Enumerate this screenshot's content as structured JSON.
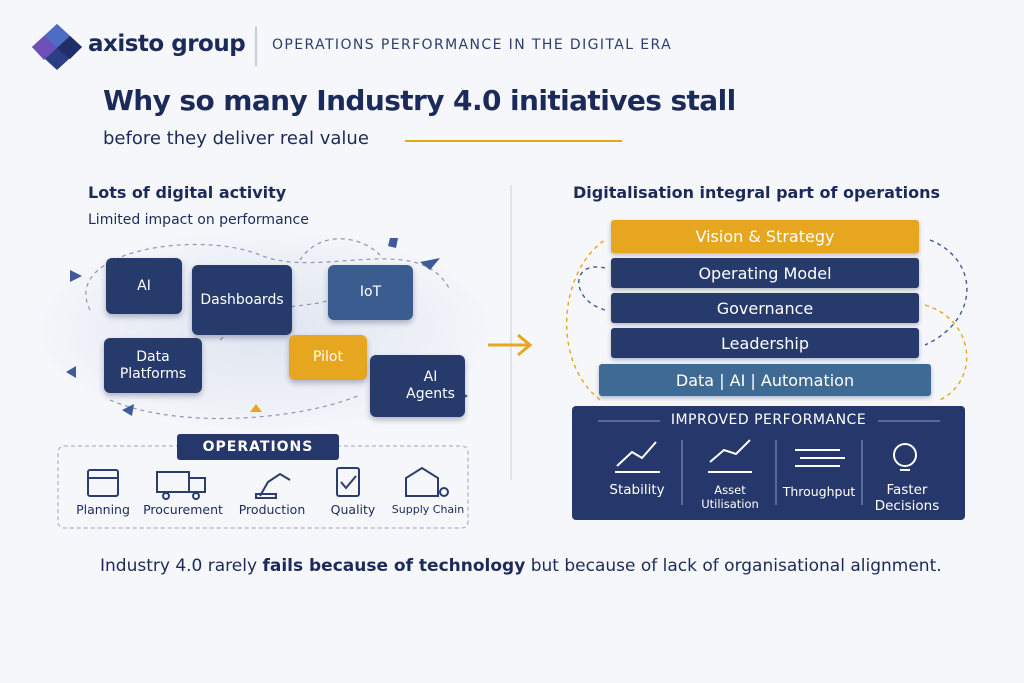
{
  "header": {
    "brand": "axisto group",
    "tagline": "OPERATIONS PERFORMANCE IN THE DIGITAL ERA"
  },
  "title": "Why so many Industry 4.0 initiatives stall",
  "subtitle": "before they deliver real value",
  "left": {
    "heading": "Lots of digital activity",
    "subheading": "Limited impact on performance",
    "tiles": [
      "AI",
      "Dashboards",
      "IoT",
      "Data Platforms",
      "Pilot",
      "AI Agents"
    ],
    "operations": {
      "label": "OPERATIONS",
      "items": [
        "Planning",
        "Procurement",
        "Production",
        "Quality",
        "Supply Chain"
      ]
    }
  },
  "right": {
    "heading": "Digitalisation integral part of operations",
    "layers": [
      "Vision & Strategy",
      "Operating Model",
      "Governance",
      "Leadership",
      "Data | AI | Automation"
    ],
    "performance": {
      "label": "IMPROVED PERFORMANCE",
      "items": [
        "Stability",
        "Asset Utilisation",
        "Throughput",
        "Faster Decisions"
      ]
    }
  },
  "conclusion": [
    "Industry 4.0 rarely ",
    "fails because of technology",
    " but because of lack of organisational alignment."
  ]
}
